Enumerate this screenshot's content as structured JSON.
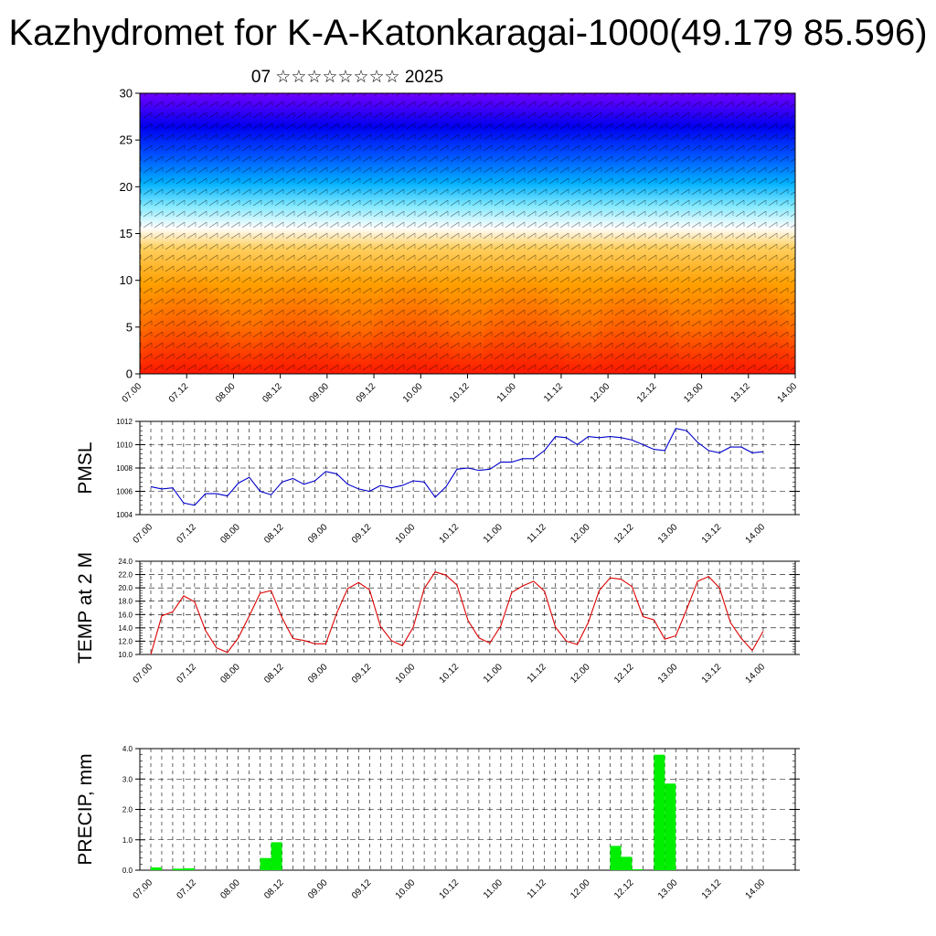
{
  "title": "Kazhydromet for K-A-Katonkaragai-1000(49.179 85.596)",
  "subtitle": "07 ☆☆☆☆☆☆☆☆ 2025",
  "chart_data": [
    {
      "type": "heatmap",
      "ylim": [
        0,
        30
      ],
      "yticks": [
        "0",
        "5",
        "10",
        "15",
        "20",
        "25",
        "30"
      ],
      "xticks": [
        "07.00",
        "07.12",
        "08.00",
        "08.12",
        "09.00",
        "09.12",
        "10.00",
        "10.12",
        "11.00",
        "11.12",
        "12.00",
        "12.12",
        "13.00",
        "13.12",
        "14.00"
      ],
      "grid": false,
      "colormap": [
        "#ff1a00",
        "#ff8c00",
        "#ffe070",
        "#ffffff",
        "#00d0ff",
        "#0040ff",
        "#7000ff"
      ],
      "surface_warm_x": [
        0.5,
        1.7,
        2.9,
        4.1,
        5.3,
        6.5
      ]
    },
    {
      "type": "line",
      "ylabel": "PMSL",
      "ylim": [
        1004,
        1012
      ],
      "yticks": [
        "1004",
        "1006",
        "1008",
        "1010",
        "1012"
      ],
      "xticks": [
        "07.00",
        "07.12",
        "08.00",
        "08.12",
        "09.00",
        "09.12",
        "10.00",
        "10.12",
        "11.00",
        "11.12",
        "12.00",
        "12.12",
        "13.00",
        "13.12",
        "14.00"
      ],
      "grid": true,
      "series": [
        {
          "color": "#0000cc",
          "x": [
            0,
            0.125,
            0.25,
            0.375,
            0.5,
            0.625,
            0.75,
            0.875,
            1,
            1.125,
            1.25,
            1.375,
            1.5,
            1.625,
            1.75,
            1.875,
            2,
            2.125,
            2.25,
            2.375,
            2.5,
            2.625,
            2.75,
            2.875,
            3,
            3.125,
            3.25,
            3.375,
            3.5,
            3.625,
            3.75,
            3.875,
            4,
            4.125,
            4.25,
            4.375,
            4.5,
            4.625,
            4.75,
            4.875,
            5,
            5.125,
            5.25,
            5.375,
            5.5,
            5.625,
            5.75,
            5.875,
            6,
            6.125,
            6.25,
            6.375,
            6.5,
            6.625,
            6.75,
            6.875,
            7
          ],
          "values": [
            1006.4,
            1006.2,
            1006.3,
            1005.0,
            1004.8,
            1005.8,
            1005.8,
            1005.6,
            1006.7,
            1007.2,
            1006.0,
            1005.7,
            1006.8,
            1007.1,
            1006.6,
            1006.9,
            1007.7,
            1007.5,
            1006.6,
            1006.2,
            1006.0,
            1006.5,
            1006.3,
            1006.5,
            1006.9,
            1006.8,
            1005.5,
            1006.4,
            1007.9,
            1008.0,
            1007.8,
            1007.9,
            1008.5,
            1008.5,
            1008.8,
            1008.8,
            1009.5,
            1010.7,
            1010.6,
            1010.0,
            1010.7,
            1010.6,
            1010.7,
            1010.6,
            1010.4,
            1010.0,
            1009.6,
            1009.5,
            1011.4,
            1011.2,
            1010.2,
            1009.5,
            1009.3,
            1009.8,
            1009.8,
            1009.3,
            1009.4
          ]
        }
      ]
    },
    {
      "type": "line",
      "ylabel": "TEMP at 2 M",
      "ylim": [
        10,
        24
      ],
      "yticks": [
        "10.0",
        "12.0",
        "14.0",
        "16.0",
        "18.0",
        "20.0",
        "22.0",
        "24.0"
      ],
      "xticks": [
        "07.00",
        "07.12",
        "08.00",
        "08.12",
        "09.00",
        "09.12",
        "10.00",
        "10.12",
        "11.00",
        "11.12",
        "12.00",
        "12.12",
        "13.00",
        "13.12",
        "14.00"
      ],
      "grid": true,
      "series": [
        {
          "color": "#dd0000",
          "x": [
            0,
            0.125,
            0.25,
            0.375,
            0.5,
            0.625,
            0.75,
            0.875,
            1,
            1.125,
            1.25,
            1.375,
            1.5,
            1.625,
            1.75,
            1.875,
            2,
            2.125,
            2.25,
            2.375,
            2.5,
            2.625,
            2.75,
            2.875,
            3,
            3.125,
            3.25,
            3.375,
            3.5,
            3.625,
            3.75,
            3.875,
            4,
            4.125,
            4.25,
            4.375,
            4.5,
            4.625,
            4.75,
            4.875,
            5,
            5.125,
            5.25,
            5.375,
            5.5,
            5.625,
            5.75,
            5.875,
            6,
            6.125,
            6.25,
            6.375,
            6.5,
            6.625,
            6.75,
            6.875,
            7
          ],
          "values": [
            10.0,
            15.8,
            16.4,
            18.8,
            17.9,
            13.6,
            11.0,
            10.3,
            12.5,
            15.8,
            19.2,
            19.6,
            15.5,
            12.4,
            12.1,
            11.6,
            11.6,
            16.2,
            19.9,
            20.8,
            19.7,
            14.2,
            12.1,
            11.3,
            14.1,
            19.9,
            22.4,
            21.9,
            20.4,
            15.1,
            12.5,
            11.7,
            14.3,
            19.3,
            20.3,
            21.0,
            19.5,
            14.1,
            12.0,
            11.5,
            14.8,
            19.6,
            21.5,
            21.3,
            20.2,
            15.7,
            15.2,
            12.3,
            12.8,
            16.8,
            21.0,
            21.7,
            20.0,
            14.8,
            12.4,
            10.6,
            13.5
          ]
        }
      ]
    },
    {
      "type": "bar",
      "ylabel": "PRECIP, mm",
      "ylim": [
        0,
        4
      ],
      "yticks": [
        "0.0",
        "1.0",
        "2.0",
        "3.0",
        "4.0"
      ],
      "xticks": [
        "07.00",
        "07.12",
        "08.00",
        "08.12",
        "09.00",
        "09.12",
        "10.00",
        "10.12",
        "11.00",
        "11.12",
        "12.00",
        "12.12",
        "13.00",
        "13.12",
        "14.00"
      ],
      "grid": true,
      "series": [
        {
          "color": "#00ee00",
          "x": [
            0.125,
            0.375,
            0.5,
            1.375,
            1.5,
            5.375,
            5.5,
            5.625,
            5.875,
            6.0
          ],
          "values": [
            0.09,
            0.05,
            0.06,
            0.4,
            0.92,
            0.8,
            0.44,
            0.03,
            3.8,
            2.85
          ]
        }
      ]
    }
  ]
}
